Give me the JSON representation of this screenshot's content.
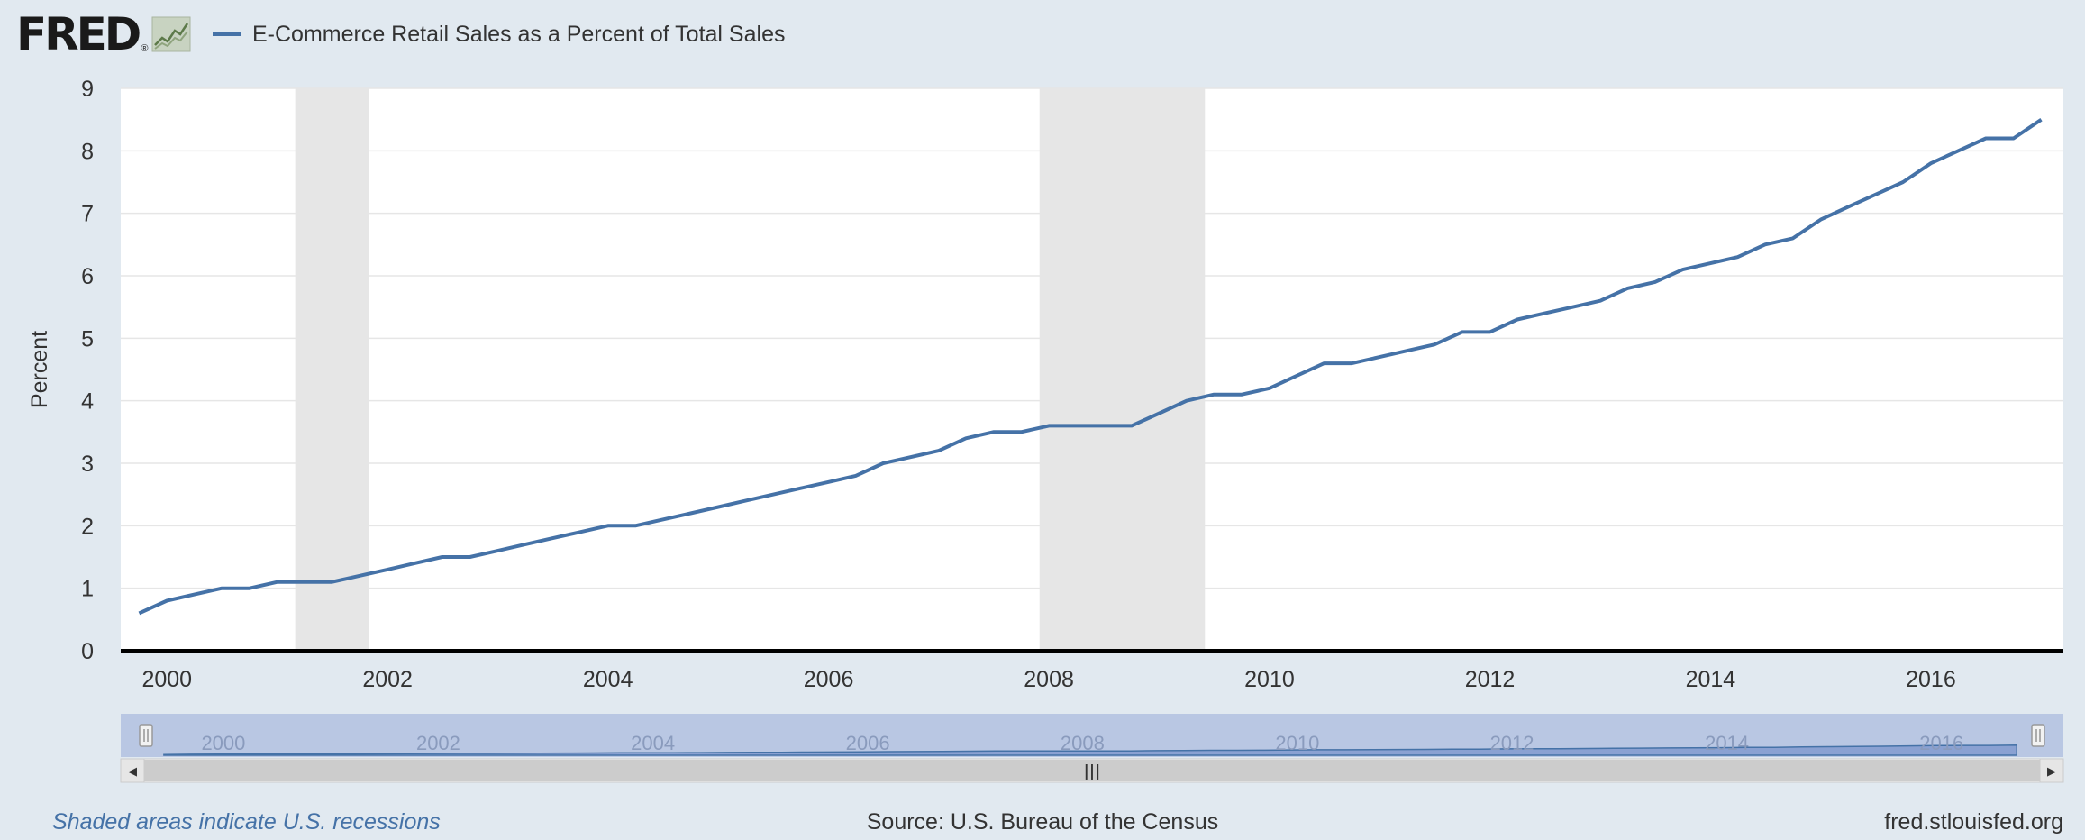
{
  "header": {
    "logo_text": "FRED",
    "logo_reg": "®",
    "legend_label": "E-Commerce Retail Sales as a Percent of Total Sales"
  },
  "footer": {
    "recession_note": "Shaded areas indicate U.S. recessions",
    "source": "Source: U.S. Bureau of the Census",
    "site": "fred.stlouisfed.org"
  },
  "colors": {
    "series": "#4572a7",
    "recession": "#e6e6e6",
    "background": "#e1e9f0",
    "navigator_mask": "#b9c7e3",
    "navigator_area": "#8aa1d2"
  },
  "chart_data": {
    "type": "line",
    "xlabel": "",
    "ylabel": "Percent",
    "ylim": [
      0,
      9
    ],
    "xlim": [
      "1999-08-01",
      "2017-03-15"
    ],
    "y_ticks": [
      "0",
      "1",
      "2",
      "3",
      "4",
      "5",
      "6",
      "7",
      "8",
      "9"
    ],
    "x_ticks": [
      "2000",
      "2002",
      "2004",
      "2006",
      "2008",
      "2010",
      "2012",
      "2014",
      "2016"
    ],
    "grid": true,
    "legend_position": "top-left",
    "recessions": [
      {
        "start": "2001-03-01",
        "end": "2001-11-01"
      },
      {
        "start": "2007-12-01",
        "end": "2009-06-01"
      }
    ],
    "series": [
      {
        "name": "E-Commerce Retail Sales as a Percent of Total Sales",
        "x": [
          "1999-10-01",
          "2000-01-01",
          "2000-04-01",
          "2000-07-01",
          "2000-10-01",
          "2001-01-01",
          "2001-04-01",
          "2001-07-01",
          "2001-10-01",
          "2002-01-01",
          "2002-04-01",
          "2002-07-01",
          "2002-10-01",
          "2003-01-01",
          "2003-04-01",
          "2003-07-01",
          "2003-10-01",
          "2004-01-01",
          "2004-04-01",
          "2004-07-01",
          "2004-10-01",
          "2005-01-01",
          "2005-04-01",
          "2005-07-01",
          "2005-10-01",
          "2006-01-01",
          "2006-04-01",
          "2006-07-01",
          "2006-10-01",
          "2007-01-01",
          "2007-04-01",
          "2007-07-01",
          "2007-10-01",
          "2008-01-01",
          "2008-04-01",
          "2008-07-01",
          "2008-10-01",
          "2009-01-01",
          "2009-04-01",
          "2009-07-01",
          "2009-10-01",
          "2010-01-01",
          "2010-04-01",
          "2010-07-01",
          "2010-10-01",
          "2011-01-01",
          "2011-04-01",
          "2011-07-01",
          "2011-10-01",
          "2012-01-01",
          "2012-04-01",
          "2012-07-01",
          "2012-10-01",
          "2013-01-01",
          "2013-04-01",
          "2013-07-01",
          "2013-10-01",
          "2014-01-01",
          "2014-04-01",
          "2014-07-01",
          "2014-10-01",
          "2015-01-01",
          "2015-04-01",
          "2015-07-01",
          "2015-10-01",
          "2016-01-01",
          "2016-04-01",
          "2016-07-01",
          "2016-10-01",
          "2017-01-01"
        ],
        "values": [
          0.6,
          0.8,
          0.9,
          1.0,
          1.0,
          1.1,
          1.1,
          1.1,
          1.2,
          1.3,
          1.4,
          1.5,
          1.5,
          1.6,
          1.7,
          1.8,
          1.9,
          2.0,
          2.0,
          2.1,
          2.2,
          2.3,
          2.4,
          2.5,
          2.6,
          2.7,
          2.8,
          3.0,
          3.1,
          3.2,
          3.4,
          3.5,
          3.5,
          3.6,
          3.6,
          3.6,
          3.6,
          3.8,
          4.0,
          4.1,
          4.1,
          4.2,
          4.4,
          4.6,
          4.6,
          4.7,
          4.8,
          4.9,
          5.1,
          5.1,
          5.3,
          5.4,
          5.5,
          5.6,
          5.8,
          5.9,
          6.1,
          6.2,
          6.3,
          6.5,
          6.6,
          6.9,
          7.1,
          7.3,
          7.5,
          7.8,
          8.0,
          8.2,
          8.2,
          8.5
        ]
      }
    ]
  },
  "navigator": {
    "x_ticks": [
      "2000",
      "2002",
      "2004",
      "2006",
      "2008",
      "2010",
      "2012",
      "2014",
      "2016"
    ],
    "handle_glyph": "|||",
    "left_arrow": "◀",
    "right_arrow": "▶"
  }
}
